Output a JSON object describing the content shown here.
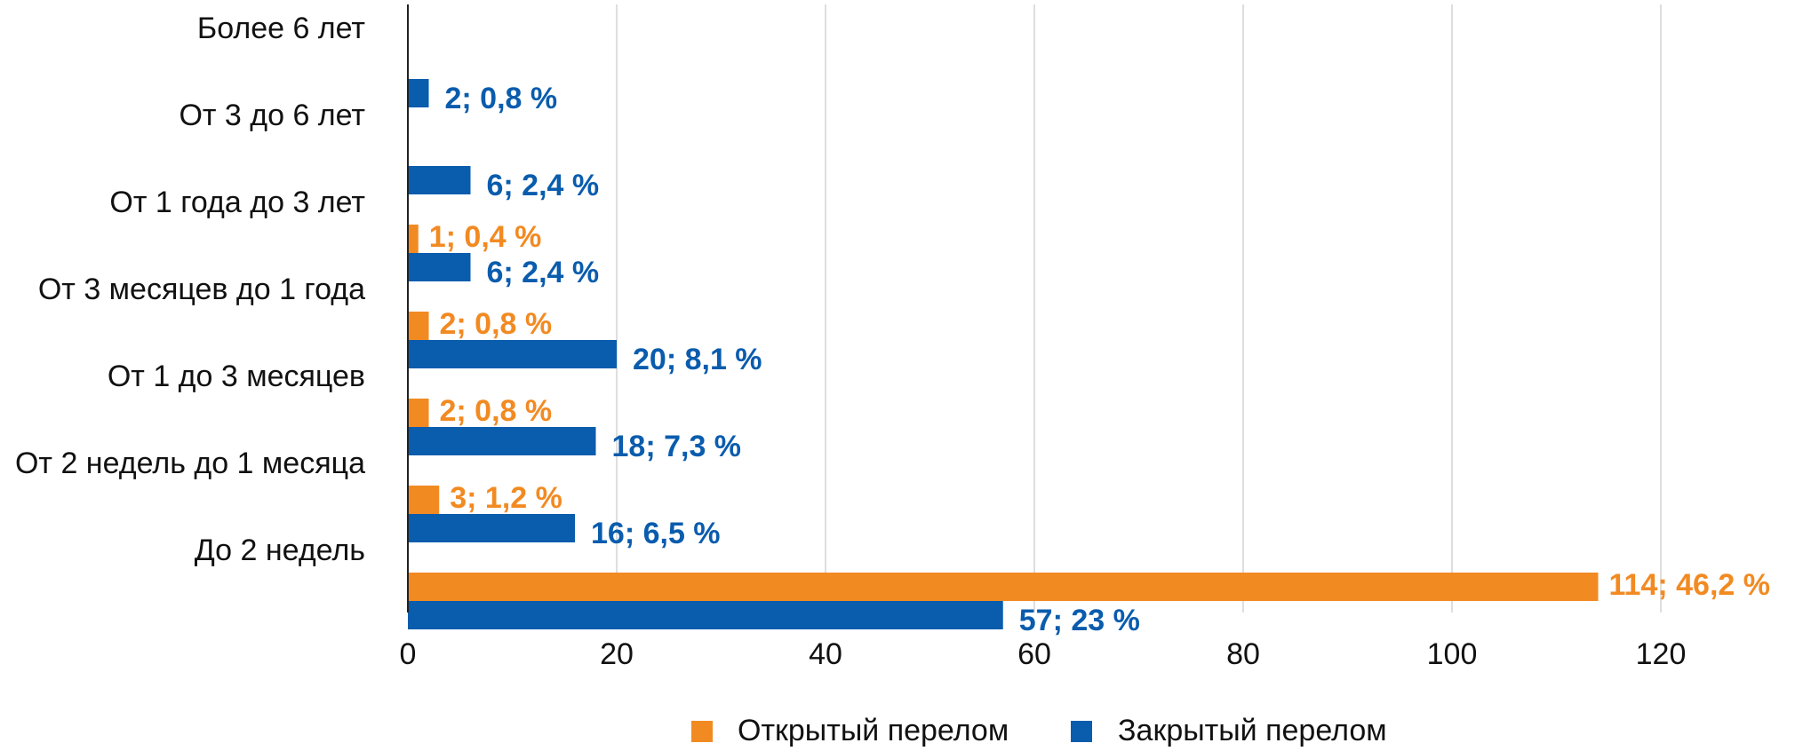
{
  "chart_data": {
    "type": "bar",
    "orientation": "horizontal",
    "categories": [
      "Более 6 лет",
      "От 3 до 6 лет",
      "От 1 года до 3 лет",
      "От 3 месяцев до 1 года",
      "От 1 до 3 месяцев",
      "От 2 недель до 1 месяца",
      "До 2 недель"
    ],
    "series": [
      {
        "name": "Открытый перелом",
        "color": "#F28A22",
        "values": [
          null,
          null,
          1,
          2,
          2,
          3,
          114
        ],
        "labels": [
          "",
          "",
          "1; 0,4 %",
          "2; 0,8 %",
          "2; 0,8 %",
          "3; 1,2 %",
          "114; 46,2 %"
        ]
      },
      {
        "name": "Закрытый перелом",
        "color": "#0A5CAD",
        "values": [
          2,
          6,
          6,
          20,
          18,
          16,
          57
        ],
        "labels": [
          "2; 0,8 %",
          "6; 2,4 %",
          "6; 2,4 %",
          "20; 8,1 %",
          "18; 7,3 %",
          "16; 6,5 %",
          "57; 23 %"
        ]
      }
    ],
    "xlim": [
      0,
      120
    ],
    "xticks": [
      "0",
      "20",
      "40",
      "60",
      "80",
      "100",
      "120"
    ],
    "grid": true,
    "legend_position": "bottom"
  }
}
